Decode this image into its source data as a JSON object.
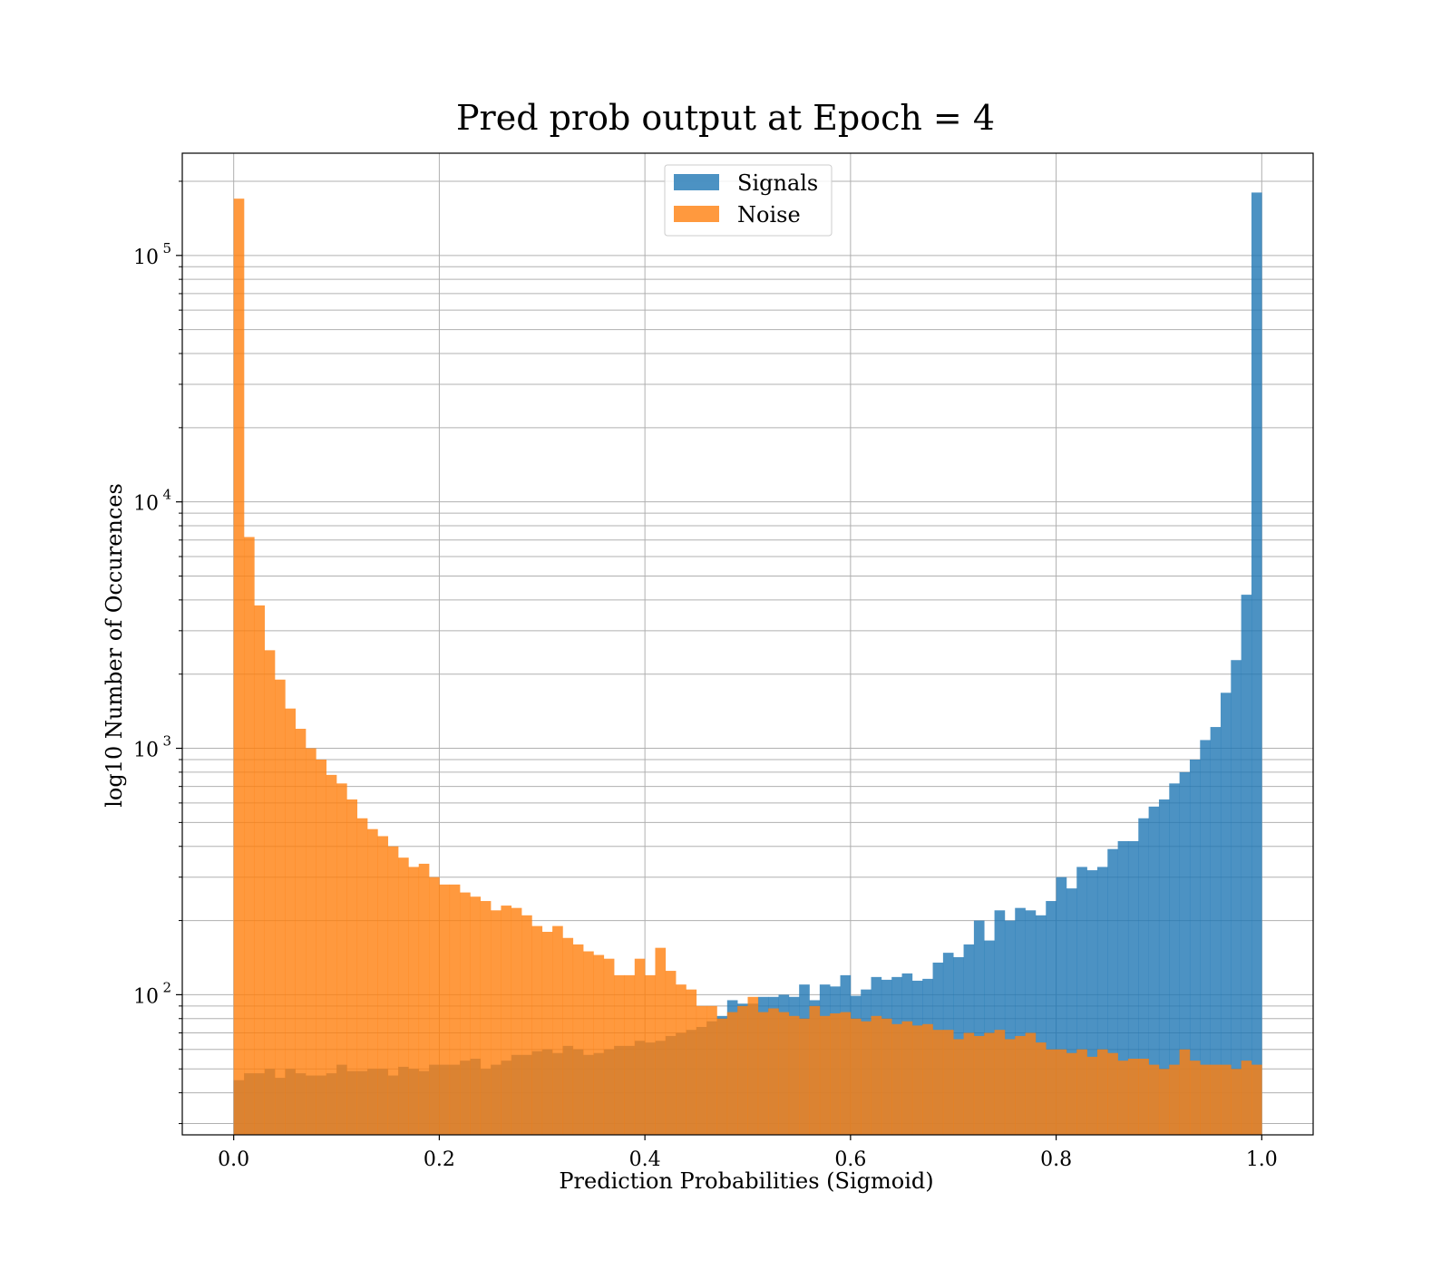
{
  "chart_data": {
    "type": "bar",
    "title": "Pred prob output at Epoch = 4",
    "xlabel": "Prediction Probabilities (Sigmoid)",
    "ylabel": "log10 Number of Occurences",
    "xlim": [
      -0.05,
      1.05
    ],
    "ylim": [
      27,
      260000
    ],
    "yscale": "log",
    "grid": true,
    "legend_position": "top-center",
    "bins": 100,
    "bin_range": [
      0,
      1
    ],
    "x_ticks": [
      "0.0",
      "0.2",
      "0.4",
      "0.6",
      "0.8",
      "1.0"
    ],
    "y_ticks": [
      {
        "value": 100,
        "base": "10",
        "exp": "2"
      },
      {
        "value": 1000,
        "base": "10",
        "exp": "3"
      },
      {
        "value": 10000,
        "base": "10",
        "exp": "4"
      },
      {
        "value": 100000,
        "base": "10",
        "exp": "5"
      }
    ],
    "series": [
      {
        "name": "Signals",
        "color": "#1f77b4",
        "values": [
          45,
          48,
          48,
          50,
          46,
          50,
          48,
          47,
          47,
          48,
          52,
          49,
          49,
          50,
          50,
          47,
          51,
          50,
          49,
          52,
          52,
          52,
          54,
          55,
          50,
          52,
          54,
          57,
          57,
          59,
          60,
          58,
          62,
          60,
          57,
          58,
          60,
          62,
          62,
          65,
          64,
          65,
          68,
          70,
          72,
          74,
          78,
          82,
          95,
          92,
          92,
          98,
          98,
          100,
          98,
          110,
          95,
          110,
          108,
          120,
          99,
          105,
          118,
          115,
          118,
          122,
          114,
          116,
          135,
          148,
          142,
          160,
          200,
          166,
          220,
          200,
          225,
          220,
          210,
          240,
          300,
          270,
          330,
          320,
          330,
          390,
          420,
          420,
          520,
          580,
          620,
          720,
          800,
          900,
          1080,
          1220,
          1680,
          2280,
          4200,
          180000
        ]
      },
      {
        "name": "Noise",
        "color": "#ff7f0e",
        "values": [
          170000,
          7200,
          3800,
          2500,
          1900,
          1450,
          1200,
          1000,
          900,
          780,
          720,
          620,
          520,
          470,
          440,
          400,
          360,
          330,
          340,
          300,
          280,
          280,
          260,
          250,
          240,
          220,
          230,
          225,
          210,
          190,
          180,
          190,
          170,
          160,
          150,
          145,
          140,
          120,
          120,
          140,
          120,
          155,
          125,
          110,
          105,
          90,
          90,
          80,
          85,
          90,
          98,
          85,
          88,
          85,
          82,
          80,
          90,
          82,
          84,
          85,
          80,
          78,
          82,
          80,
          76,
          78,
          75,
          76,
          72,
          72,
          66,
          70,
          68,
          70,
          72,
          66,
          68,
          70,
          64,
          60,
          60,
          58,
          60,
          56,
          60,
          58,
          54,
          55,
          55,
          52,
          50,
          52,
          60,
          54,
          52,
          52,
          52,
          50,
          54,
          52
        ]
      }
    ]
  }
}
